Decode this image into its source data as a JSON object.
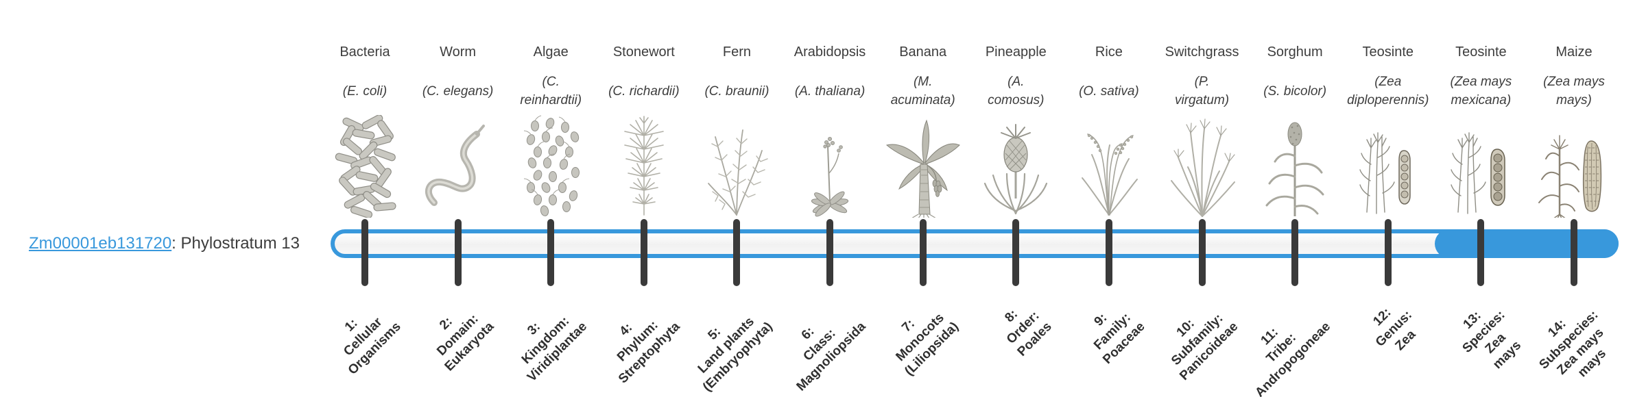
{
  "gene": {
    "id": "Zm00001eb131720",
    "suffix": ": Phylostratum 13",
    "phylostratum": 13
  },
  "colors": {
    "accent_blue": "#3898DC",
    "tick_dark": "#3a3a3a",
    "text_dark": "#3d3d3d",
    "bar_interior_light": "#f4f4f4"
  },
  "chart_data": {
    "type": "phylostratigraphy-timeline",
    "title": "Zm00001eb131720: Phylostratum 13",
    "total_strata": 14,
    "gene_phylostratum": 13,
    "filled_range": [
      13,
      14
    ],
    "categories": [
      "1: Cellular Organisms",
      "2: Domain: Eukaryota",
      "3: Kingdom: Viridiplantae",
      "4: Phylum: Streptophyta",
      "5: Land plants (Embryophyta)",
      "6: Class: Magnoliopsida",
      "7: Monocots (Liliopsida)",
      "8: Order: Poales",
      "9: Family: Poaceae",
      "10: Subfamily: Panicoideae",
      "11: Tribe: Andropogoneae",
      "12: Genus: Zea",
      "13: Species: Zea mays",
      "14: Subspecies: Zea mays mays"
    ],
    "legend_position": "none",
    "grid": false
  },
  "taxa": [
    {
      "common": "Bacteria",
      "latin_lines": [
        "(E. coli)"
      ],
      "icon": "bacteria",
      "stratum_lines": [
        "1:",
        "Cellular",
        "Organisms"
      ]
    },
    {
      "common": "Worm",
      "latin_lines": [
        "(C. elegans)"
      ],
      "icon": "worm",
      "stratum_lines": [
        "2:",
        "Domain:",
        "Eukaryota"
      ]
    },
    {
      "common": "Algae",
      "latin_lines": [
        "(C.",
        "reinhardtii)"
      ],
      "icon": "algae",
      "stratum_lines": [
        "3:",
        "Kingdom:",
        "Viridiplantae"
      ]
    },
    {
      "common": "Stonewort",
      "latin_lines": [
        "(C. richardii)"
      ],
      "icon": "stonewort",
      "stratum_lines": [
        "4:",
        "Phylum:",
        "Streptophyta"
      ]
    },
    {
      "common": "Fern",
      "latin_lines": [
        "(C. braunii)"
      ],
      "icon": "fern",
      "stratum_lines": [
        "5:",
        "Land plants",
        "(Embryophyta)"
      ]
    },
    {
      "common": "Arabidopsis",
      "latin_lines": [
        "(A. thaliana)"
      ],
      "icon": "arabidopsis",
      "stratum_lines": [
        "6:",
        "Class:",
        "Magnoliopsida"
      ]
    },
    {
      "common": "Banana",
      "latin_lines": [
        "(M.",
        "acuminata)"
      ],
      "icon": "banana",
      "stratum_lines": [
        "7:",
        "Monocots",
        "(Liliopsida)"
      ]
    },
    {
      "common": "Pineapple",
      "latin_lines": [
        "(A.",
        "comosus)"
      ],
      "icon": "pineapple",
      "stratum_lines": [
        "8:",
        "Order:",
        "Poales"
      ]
    },
    {
      "common": "Rice",
      "latin_lines": [
        "(O. sativa)"
      ],
      "icon": "rice",
      "stratum_lines": [
        "9:",
        "Family:",
        "Poaceae"
      ]
    },
    {
      "common": "Switchgrass",
      "latin_lines": [
        "(P.",
        "virgatum)"
      ],
      "icon": "switchgrass",
      "stratum_lines": [
        "10:",
        "Subfamily:",
        "Panicoideae"
      ]
    },
    {
      "common": "Sorghum",
      "latin_lines": [
        "(S. bicolor)"
      ],
      "icon": "sorghum",
      "stratum_lines": [
        "11:",
        "Tribe:",
        "Andropogoneae"
      ]
    },
    {
      "common": "Teosinte",
      "latin_lines": [
        "(Zea",
        "diploperennis)"
      ],
      "icon": "teosinte-diploperennis",
      "stratum_lines": [
        "12:",
        "Genus:",
        "Zea"
      ]
    },
    {
      "common": "Teosinte",
      "latin_lines": [
        "(Zea mays",
        "mexicana)"
      ],
      "icon": "teosinte-mexicana",
      "stratum_lines": [
        "13:",
        "Species:",
        "Zea",
        "mays"
      ]
    },
    {
      "common": "Maize",
      "latin_lines": [
        "(Zea mays",
        "mays)"
      ],
      "icon": "maize",
      "stratum_lines": [
        "14:",
        "Subspecies:",
        "Zea mays",
        "mays"
      ]
    }
  ]
}
